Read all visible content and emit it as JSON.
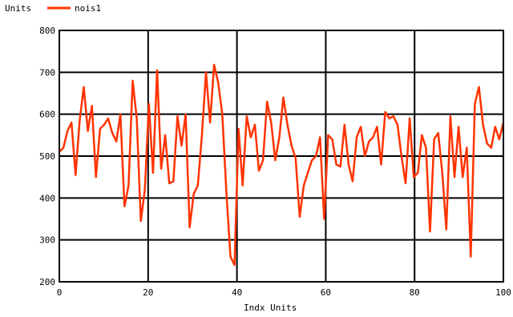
{
  "chart_data": {
    "type": "line",
    "units_label": "Units",
    "xlabel": "Indx  Units",
    "xlim": [
      0,
      100
    ],
    "ylim": [
      200,
      800
    ],
    "xticks": [
      0,
      20,
      40,
      60,
      80,
      100
    ],
    "yticks": [
      200,
      300,
      400,
      500,
      600,
      700,
      800
    ],
    "grid": true,
    "legend": "top-left",
    "line_color": "#ff3300",
    "series": [
      {
        "name": "nois1",
        "values": [
          510,
          520,
          560,
          580,
          455,
          585,
          665,
          560,
          620,
          450,
          565,
          575,
          590,
          555,
          535,
          600,
          380,
          430,
          680,
          590,
          345,
          420,
          625,
          460,
          705,
          470,
          550,
          435,
          440,
          595,
          525,
          600,
          330,
          410,
          430,
          550,
          700,
          580,
          718,
          675,
          600,
          415,
          260,
          240,
          565,
          430,
          595,
          545,
          575,
          465,
          490,
          630,
          580,
          490,
          545,
          640,
          575,
          525,
          495,
          355,
          430,
          460,
          490,
          500,
          545,
          350,
          550,
          540,
          480,
          475,
          575,
          480,
          440,
          545,
          570,
          500,
          535,
          545,
          570,
          480,
          605,
          590,
          595,
          575,
          500,
          435,
          590,
          450,
          460,
          550,
          520,
          320,
          540,
          555,
          460,
          325,
          595,
          450,
          570,
          450,
          520,
          260,
          625,
          665,
          575,
          530,
          520,
          570,
          540,
          580
        ]
      }
    ]
  }
}
